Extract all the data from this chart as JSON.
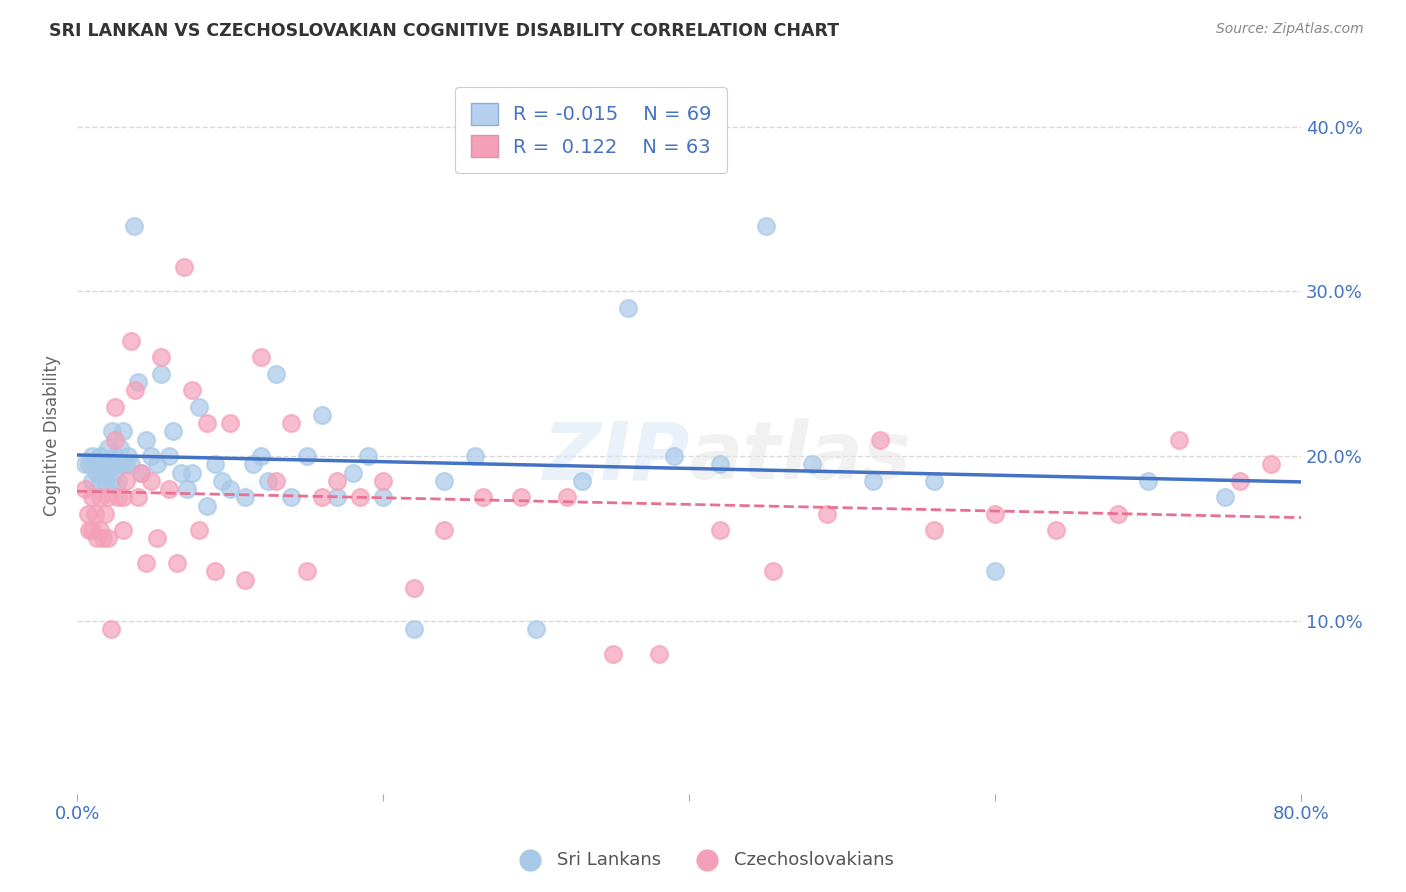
{
  "title": "SRI LANKAN VS CZECHOSLOVAKIAN COGNITIVE DISABILITY CORRELATION CHART",
  "source": "Source: ZipAtlas.com",
  "ylabel": "Cognitive Disability",
  "watermark": "ZIPatlas",
  "sri_lankan_color": "#a8c8e8",
  "czechoslovakian_color": "#f4a0b8",
  "sri_lankan_line_color": "#4472c4",
  "czechoslovakian_line_color": "#e87090",
  "legend_blue_fill": "#b8d0f0",
  "legend_pink_fill": "#f4a0b8",
  "legend_text_color": "#4472c4",
  "r_blue": -0.015,
  "n_blue": 69,
  "r_pink": 0.122,
  "n_pink": 63,
  "xlim": [
    0.0,
    0.8
  ],
  "ylim": [
    -0.005,
    0.43
  ],
  "yticks": [
    0.1,
    0.2,
    0.3,
    0.4
  ],
  "xticks": [
    0.0,
    0.2,
    0.4,
    0.6,
    0.8
  ],
  "background_color": "#ffffff",
  "grid_color": "#d8d8d8",
  "title_color": "#333333",
  "tick_color": "#4472c4",
  "sl_x": [
    0.005,
    0.008,
    0.01,
    0.01,
    0.012,
    0.013,
    0.015,
    0.015,
    0.016,
    0.017,
    0.018,
    0.02,
    0.02,
    0.022,
    0.022,
    0.023,
    0.025,
    0.026,
    0.027,
    0.028,
    0.03,
    0.03,
    0.032,
    0.033,
    0.035,
    0.037,
    0.04,
    0.042,
    0.045,
    0.048,
    0.052,
    0.055,
    0.06,
    0.063,
    0.068,
    0.072,
    0.075,
    0.08,
    0.085,
    0.09,
    0.095,
    0.1,
    0.11,
    0.115,
    0.12,
    0.125,
    0.13,
    0.14,
    0.15,
    0.16,
    0.17,
    0.18,
    0.19,
    0.2,
    0.22,
    0.24,
    0.26,
    0.3,
    0.33,
    0.36,
    0.39,
    0.42,
    0.45,
    0.48,
    0.52,
    0.56,
    0.6,
    0.7,
    0.75
  ],
  "sl_y": [
    0.195,
    0.195,
    0.2,
    0.185,
    0.195,
    0.19,
    0.2,
    0.185,
    0.195,
    0.19,
    0.185,
    0.205,
    0.195,
    0.185,
    0.195,
    0.215,
    0.2,
    0.195,
    0.185,
    0.205,
    0.215,
    0.195,
    0.195,
    0.2,
    0.195,
    0.34,
    0.245,
    0.19,
    0.21,
    0.2,
    0.195,
    0.25,
    0.2,
    0.215,
    0.19,
    0.18,
    0.19,
    0.23,
    0.17,
    0.195,
    0.185,
    0.18,
    0.175,
    0.195,
    0.2,
    0.185,
    0.25,
    0.175,
    0.2,
    0.225,
    0.175,
    0.19,
    0.2,
    0.175,
    0.095,
    0.185,
    0.2,
    0.095,
    0.185,
    0.29,
    0.2,
    0.195,
    0.34,
    0.195,
    0.185,
    0.185,
    0.13,
    0.185,
    0.175
  ],
  "cz_x": [
    0.005,
    0.007,
    0.008,
    0.01,
    0.01,
    0.012,
    0.013,
    0.015,
    0.015,
    0.017,
    0.018,
    0.02,
    0.02,
    0.022,
    0.025,
    0.025,
    0.027,
    0.03,
    0.03,
    0.032,
    0.035,
    0.038,
    0.04,
    0.042,
    0.045,
    0.048,
    0.052,
    0.055,
    0.06,
    0.065,
    0.07,
    0.075,
    0.08,
    0.085,
    0.09,
    0.1,
    0.11,
    0.12,
    0.13,
    0.14,
    0.15,
    0.16,
    0.17,
    0.185,
    0.2,
    0.22,
    0.24,
    0.265,
    0.29,
    0.32,
    0.35,
    0.38,
    0.42,
    0.455,
    0.49,
    0.525,
    0.56,
    0.6,
    0.64,
    0.68,
    0.72,
    0.76,
    0.78
  ],
  "cz_y": [
    0.18,
    0.165,
    0.155,
    0.175,
    0.155,
    0.165,
    0.15,
    0.175,
    0.155,
    0.15,
    0.165,
    0.175,
    0.15,
    0.095,
    0.23,
    0.21,
    0.175,
    0.175,
    0.155,
    0.185,
    0.27,
    0.24,
    0.175,
    0.19,
    0.135,
    0.185,
    0.15,
    0.26,
    0.18,
    0.135,
    0.315,
    0.24,
    0.155,
    0.22,
    0.13,
    0.22,
    0.125,
    0.26,
    0.185,
    0.22,
    0.13,
    0.175,
    0.185,
    0.175,
    0.185,
    0.12,
    0.155,
    0.175,
    0.175,
    0.175,
    0.08,
    0.08,
    0.155,
    0.13,
    0.165,
    0.21,
    0.155,
    0.165,
    0.155,
    0.165,
    0.21,
    0.185,
    0.195
  ]
}
